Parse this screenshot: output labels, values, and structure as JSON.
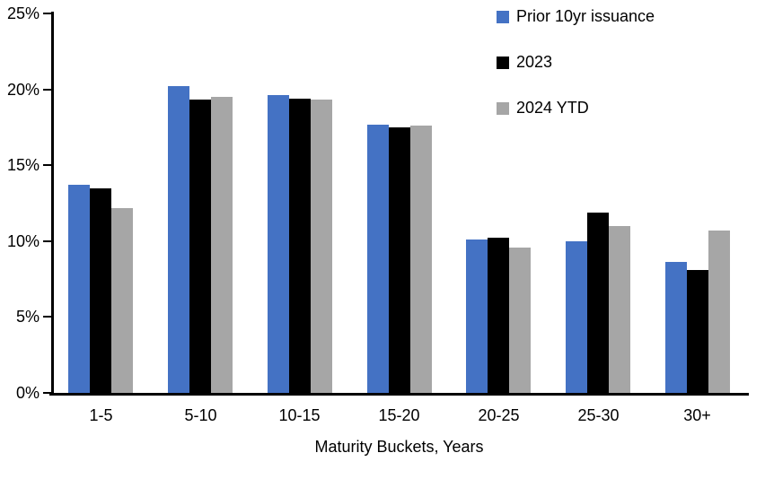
{
  "chart_data": {
    "type": "bar",
    "title": "",
    "xlabel": "Maturity Buckets, Years",
    "ylabel": "",
    "ylim": [
      0,
      25
    ],
    "ytick_step": 5,
    "yticks": [
      "0%",
      "5%",
      "10%",
      "15%",
      "20%",
      "25%"
    ],
    "grid": false,
    "legend_position": "top-right",
    "categories": [
      "1-5",
      "5-10",
      "10-15",
      "15-20",
      "20-25",
      "25-30",
      "30+"
    ],
    "series": [
      {
        "name": "Prior 10yr issuance",
        "color": "#4472C4",
        "values": [
          13.7,
          20.2,
          19.6,
          17.7,
          10.1,
          10.0,
          8.6
        ]
      },
      {
        "name": "2023",
        "color": "#000000",
        "values": [
          13.5,
          19.3,
          19.4,
          17.5,
          10.2,
          11.9,
          8.1
        ]
      },
      {
        "name": "2024 YTD",
        "color": "#A6A6A6",
        "values": [
          12.2,
          19.5,
          19.3,
          17.6,
          9.6,
          11.0,
          10.7
        ]
      }
    ],
    "colors": {
      "axis": "#000000",
      "background": "#FFFFFF"
    }
  }
}
